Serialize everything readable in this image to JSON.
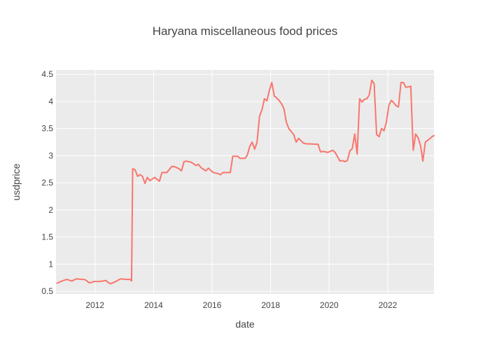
{
  "colors": {
    "plot_background": "#ebebeb",
    "page_background": "#ffffff",
    "line": "#f8766d",
    "grid": "#ffffff",
    "text": "#444444"
  },
  "chart_data": {
    "type": "line",
    "title": "Haryana miscellaneous food prices",
    "xlabel": "date",
    "ylabel": "usdprice",
    "xlim": [
      "2010-09-01",
      "2023-08-01"
    ],
    "ylim": [
      0.45,
      4.58
    ],
    "x_ticks": [
      "2012",
      "2014",
      "2016",
      "2018",
      "2020",
      "2022"
    ],
    "y_ticks": [
      0.5,
      1,
      1.5,
      2,
      2.5,
      3,
      3.5,
      4,
      4.5
    ],
    "y_tick_labels": [
      "0.5",
      "1",
      "1.5",
      "2",
      "2.5",
      "3",
      "3.5",
      "4",
      "4.5"
    ],
    "grid": true,
    "legend": "none",
    "series": [
      {
        "points": [
          [
            "2010-09-15",
            0.65
          ],
          [
            "2010-11-15",
            0.69
          ],
          [
            "2011-01-15",
            0.72
          ],
          [
            "2011-03-15",
            0.69
          ],
          [
            "2011-05-15",
            0.73
          ],
          [
            "2011-07-15",
            0.72
          ],
          [
            "2011-08-15",
            0.72
          ],
          [
            "2011-09-15",
            0.7
          ],
          [
            "2011-10-15",
            0.66
          ],
          [
            "2011-11-15",
            0.66
          ],
          [
            "2011-12-15",
            0.68
          ],
          [
            "2012-02-15",
            0.68
          ],
          [
            "2012-04-15",
            0.69
          ],
          [
            "2012-05-15",
            0.7
          ],
          [
            "2012-06-15",
            0.66
          ],
          [
            "2012-07-15",
            0.64
          ],
          [
            "2012-09-15",
            0.68
          ],
          [
            "2012-11-15",
            0.73
          ],
          [
            "2013-01-15",
            0.72
          ],
          [
            "2013-03-15",
            0.72
          ],
          [
            "2013-04-01",
            0.69
          ],
          [
            "2013-04-15",
            2.76
          ],
          [
            "2013-05-15",
            2.74
          ],
          [
            "2013-06-15",
            2.62
          ],
          [
            "2013-07-15",
            2.65
          ],
          [
            "2013-08-15",
            2.62
          ],
          [
            "2013-09-15",
            2.49
          ],
          [
            "2013-10-15",
            2.6
          ],
          [
            "2013-11-15",
            2.54
          ],
          [
            "2014-01-15",
            2.6
          ],
          [
            "2014-03-15",
            2.53
          ],
          [
            "2014-04-15",
            2.69
          ],
          [
            "2014-06-15",
            2.69
          ],
          [
            "2014-08-15",
            2.8
          ],
          [
            "2014-09-15",
            2.8
          ],
          [
            "2014-11-15",
            2.76
          ],
          [
            "2014-12-15",
            2.72
          ],
          [
            "2015-01-15",
            2.89
          ],
          [
            "2015-02-15",
            2.9
          ],
          [
            "2015-04-15",
            2.88
          ],
          [
            "2015-06-15",
            2.82
          ],
          [
            "2015-07-15",
            2.84
          ],
          [
            "2015-08-15",
            2.78
          ],
          [
            "2015-10-15",
            2.72
          ],
          [
            "2015-11-15",
            2.77
          ],
          [
            "2016-01-15",
            2.69
          ],
          [
            "2016-03-15",
            2.67
          ],
          [
            "2016-04-15",
            2.65
          ],
          [
            "2016-05-15",
            2.69
          ],
          [
            "2016-07-15",
            2.69
          ],
          [
            "2016-08-15",
            2.69
          ],
          [
            "2016-09-15",
            2.99
          ],
          [
            "2016-11-15",
            2.99
          ],
          [
            "2016-12-15",
            2.95
          ],
          [
            "2017-02-15",
            2.95
          ],
          [
            "2017-03-15",
            3.01
          ],
          [
            "2017-04-15",
            3.17
          ],
          [
            "2017-05-15",
            3.25
          ],
          [
            "2017-06-15",
            3.12
          ],
          [
            "2017-07-15",
            3.25
          ],
          [
            "2017-08-15",
            3.73
          ],
          [
            "2017-09-15",
            3.85
          ],
          [
            "2017-10-15",
            4.05
          ],
          [
            "2017-11-15",
            4.01
          ],
          [
            "2017-12-15",
            4.2
          ],
          [
            "2018-01-15",
            4.35
          ],
          [
            "2018-02-15",
            4.1
          ],
          [
            "2018-03-15",
            4.07
          ],
          [
            "2018-04-15",
            4.02
          ],
          [
            "2018-05-15",
            3.96
          ],
          [
            "2018-06-15",
            3.87
          ],
          [
            "2018-07-15",
            3.62
          ],
          [
            "2018-08-15",
            3.5
          ],
          [
            "2018-10-15",
            3.39
          ],
          [
            "2018-11-15",
            3.25
          ],
          [
            "2018-12-15",
            3.32
          ],
          [
            "2019-02-15",
            3.23
          ],
          [
            "2019-03-15",
            3.22
          ],
          [
            "2019-08-15",
            3.21
          ],
          [
            "2019-09-15",
            3.07
          ],
          [
            "2019-10-15",
            3.08
          ],
          [
            "2019-11-15",
            3.07
          ],
          [
            "2019-12-15",
            3.06
          ],
          [
            "2020-02-15",
            3.1
          ],
          [
            "2020-03-15",
            3.06
          ],
          [
            "2020-04-15",
            2.98
          ],
          [
            "2020-05-15",
            2.9
          ],
          [
            "2020-06-15",
            2.91
          ],
          [
            "2020-07-15",
            2.89
          ],
          [
            "2020-08-15",
            2.91
          ],
          [
            "2020-09-15",
            3.09
          ],
          [
            "2020-10-15",
            3.13
          ],
          [
            "2020-11-15",
            3.4
          ],
          [
            "2020-12-15",
            3.03
          ],
          [
            "2021-01-15",
            4.05
          ],
          [
            "2021-02-15",
            3.99
          ],
          [
            "2021-03-15",
            4.04
          ],
          [
            "2021-04-15",
            4.05
          ],
          [
            "2021-05-15",
            4.12
          ],
          [
            "2021-06-15",
            4.39
          ],
          [
            "2021-07-15",
            4.33
          ],
          [
            "2021-08-15",
            3.39
          ],
          [
            "2021-09-15",
            3.35
          ],
          [
            "2021-10-15",
            3.5
          ],
          [
            "2021-11-15",
            3.46
          ],
          [
            "2021-12-15",
            3.62
          ],
          [
            "2022-01-15",
            3.93
          ],
          [
            "2022-02-15",
            4.02
          ],
          [
            "2022-03-15",
            3.98
          ],
          [
            "2022-04-15",
            3.92
          ],
          [
            "2022-05-15",
            3.9
          ],
          [
            "2022-06-15",
            4.35
          ],
          [
            "2022-07-15",
            4.35
          ],
          [
            "2022-08-15",
            4.26
          ],
          [
            "2022-10-15",
            4.28
          ],
          [
            "2022-11-15",
            3.1
          ],
          [
            "2022-12-15",
            3.4
          ],
          [
            "2023-01-15",
            3.33
          ],
          [
            "2023-02-15",
            3.18
          ],
          [
            "2023-03-15",
            2.9
          ],
          [
            "2023-04-15",
            3.25
          ],
          [
            "2023-06-15",
            3.32
          ],
          [
            "2023-07-15",
            3.36
          ],
          [
            "2023-08-01",
            3.37
          ]
        ]
      }
    ]
  }
}
